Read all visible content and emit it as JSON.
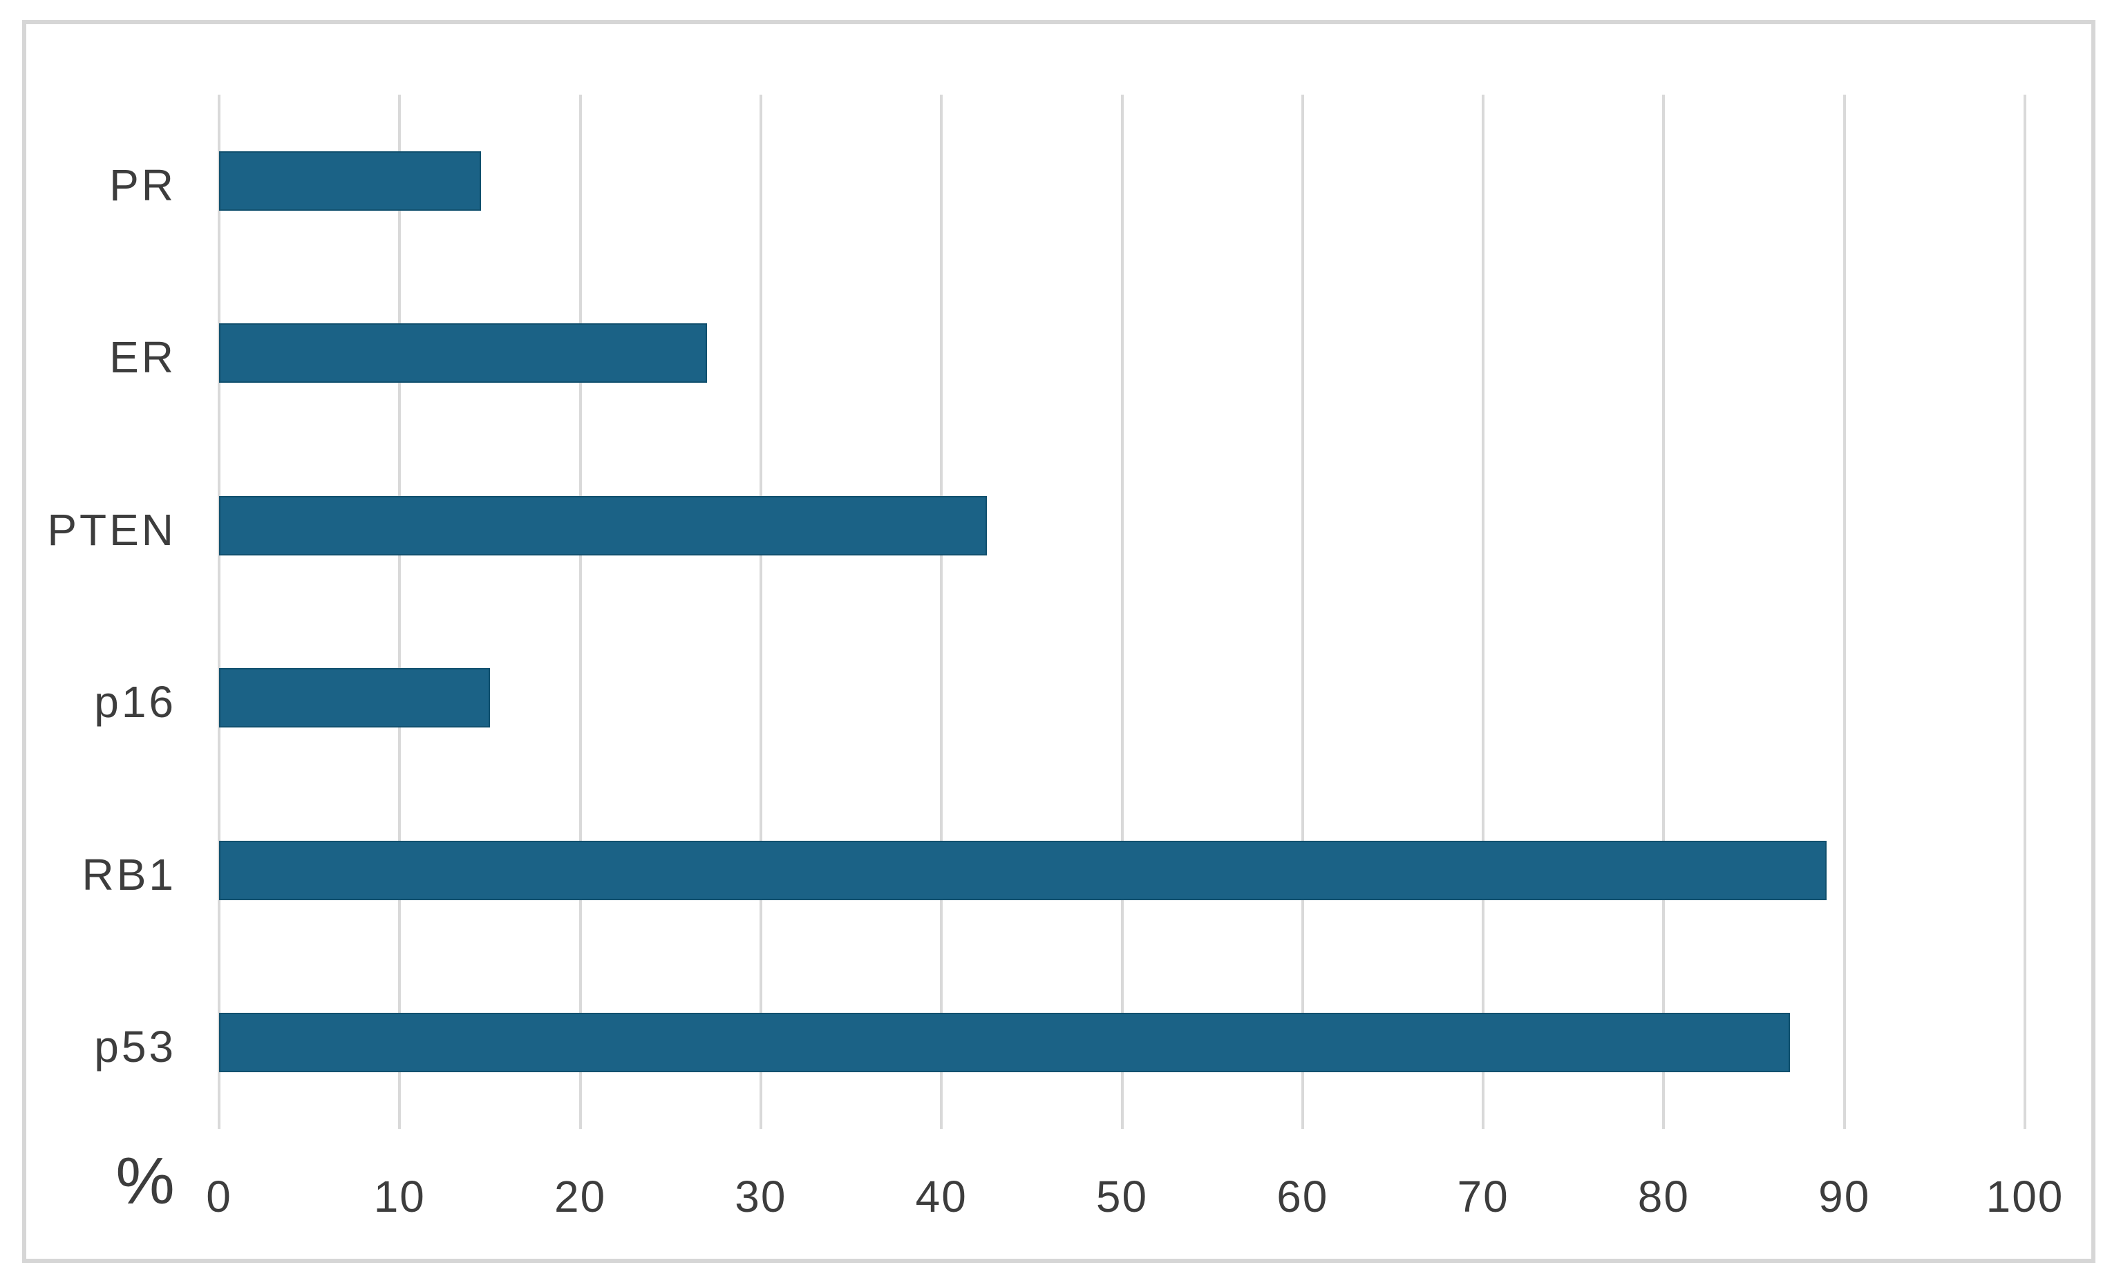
{
  "chart_data": {
    "type": "bar",
    "orientation": "horizontal",
    "categories": [
      "PR",
      "ER",
      "PTEN",
      "p16",
      "RB1",
      "p53"
    ],
    "values": [
      14.5,
      27,
      42.5,
      15,
      89,
      87
    ],
    "xlabel": "%",
    "xticks": [
      0,
      10,
      20,
      30,
      40,
      50,
      60,
      70,
      80,
      90,
      100
    ],
    "xlim": [
      0,
      100
    ],
    "grid": "vertical",
    "legend_position": "none",
    "colors": {
      "bar": "#1b6286",
      "bar_border": "#11506e",
      "gridline": "#d9d9d9",
      "frame_border": "#d6d6d6",
      "text": "#3d3d3d",
      "background": "#ffffff"
    }
  }
}
